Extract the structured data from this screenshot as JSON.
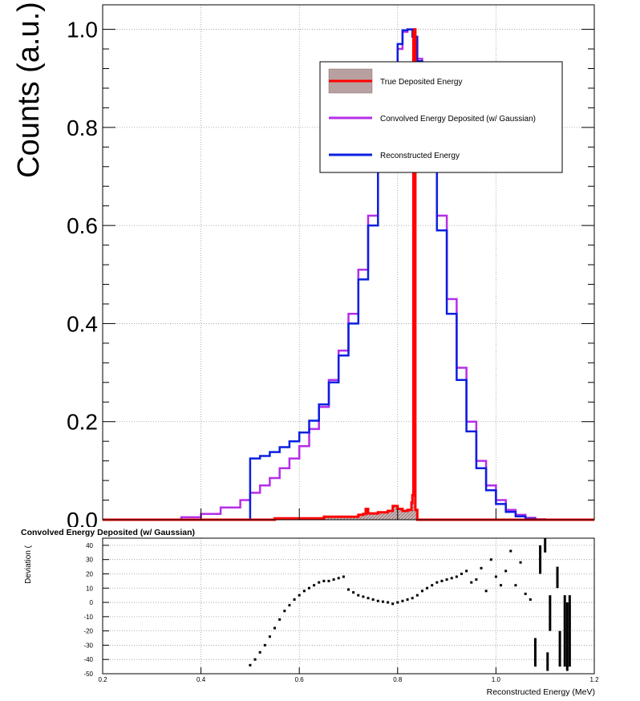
{
  "chart_data": [
    {
      "type": "line",
      "ylabel": "Counts (a.u.)",
      "xlim": [
        0.2,
        1.2
      ],
      "ylim": [
        0,
        1.05
      ],
      "grid": true,
      "legend_position": "top-right",
      "yticks": [
        "0.0",
        "0.2",
        "0.4",
        "0.6",
        "0.8",
        "1.0"
      ],
      "series": [
        {
          "name": "True Deposited Energy",
          "color": "#ff0000",
          "x": [
            0.2,
            0.4,
            0.55,
            0.65,
            0.72,
            0.73,
            0.735,
            0.74,
            0.76,
            0.78,
            0.79,
            0.8,
            0.81,
            0.82,
            0.828,
            0.83,
            0.832,
            0.834,
            0.836,
            0.84,
            1.0,
            1.2
          ],
          "y": [
            0.0,
            0.0,
            0.003,
            0.006,
            0.01,
            0.012,
            0.022,
            0.013,
            0.015,
            0.018,
            0.028,
            0.022,
            0.018,
            0.02,
            0.035,
            0.05,
            0.995,
            1.0,
            0.02,
            0.0,
            0.0,
            0.0
          ]
        },
        {
          "name": "Convolved Energy Deposited (w/ Gaussian)",
          "color": "#b52ee8",
          "x": [
            0.2,
            0.33,
            0.36,
            0.4,
            0.44,
            0.48,
            0.5,
            0.52,
            0.54,
            0.56,
            0.58,
            0.6,
            0.62,
            0.64,
            0.66,
            0.68,
            0.7,
            0.72,
            0.74,
            0.76,
            0.78,
            0.8,
            0.81,
            0.82,
            0.83,
            0.84,
            0.85,
            0.86,
            0.88,
            0.9,
            0.92,
            0.94,
            0.96,
            0.98,
            1.0,
            1.02,
            1.04,
            1.06,
            1.08,
            1.1,
            1.2
          ],
          "y": [
            0.0,
            0.0,
            0.005,
            0.012,
            0.025,
            0.04,
            0.055,
            0.07,
            0.085,
            0.105,
            0.125,
            0.15,
            0.185,
            0.23,
            0.285,
            0.345,
            0.42,
            0.51,
            0.62,
            0.74,
            0.86,
            0.96,
            0.995,
            1.0,
            0.985,
            0.94,
            0.87,
            0.79,
            0.62,
            0.45,
            0.31,
            0.2,
            0.12,
            0.07,
            0.04,
            0.02,
            0.01,
            0.004,
            0.001,
            0.0,
            0.0
          ]
        },
        {
          "name": "Reconstructed Energy",
          "color": "#0b1fe0",
          "x": [
            0.2,
            0.49,
            0.5,
            0.52,
            0.54,
            0.56,
            0.58,
            0.6,
            0.62,
            0.64,
            0.66,
            0.68,
            0.7,
            0.72,
            0.74,
            0.76,
            0.78,
            0.8,
            0.81,
            0.82,
            0.83,
            0.84,
            0.85,
            0.86,
            0.88,
            0.9,
            0.92,
            0.94,
            0.96,
            0.98,
            1.0,
            1.02,
            1.04,
            1.06,
            1.08,
            1.2
          ],
          "y": [
            0.0,
            0.0,
            0.125,
            0.13,
            0.138,
            0.148,
            0.16,
            0.178,
            0.202,
            0.235,
            0.28,
            0.335,
            0.4,
            0.49,
            0.6,
            0.73,
            0.86,
            0.97,
            0.998,
            1.0,
            0.985,
            0.935,
            0.86,
            0.77,
            0.59,
            0.42,
            0.285,
            0.18,
            0.105,
            0.06,
            0.032,
            0.016,
            0.007,
            0.002,
            0.0,
            0.0
          ]
        }
      ]
    },
    {
      "type": "scatter",
      "title": "Convolved Energy Deposited (w/ Gaussian)",
      "xlabel": "Reconstructed Energy (MeV)",
      "ylabel": "Deviation (",
      "xlim": [
        0.2,
        1.2
      ],
      "ylim": [
        -50,
        45
      ],
      "grid": true,
      "xticks": [
        "0.2",
        "0.4",
        "0.6",
        "0.8",
        "1.0",
        "1.2"
      ],
      "yticks": [
        "-50",
        "-40",
        "-30",
        "-20",
        "-10",
        "0",
        "10",
        "20",
        "30",
        "40"
      ],
      "series": [
        {
          "name": "Deviation",
          "color": "#000000",
          "x": [
            0.5,
            0.51,
            0.52,
            0.53,
            0.54,
            0.55,
            0.56,
            0.57,
            0.58,
            0.59,
            0.6,
            0.61,
            0.62,
            0.63,
            0.64,
            0.65,
            0.66,
            0.67,
            0.68,
            0.69,
            0.7,
            0.71,
            0.72,
            0.73,
            0.74,
            0.75,
            0.76,
            0.77,
            0.78,
            0.79,
            0.8,
            0.81,
            0.82,
            0.83,
            0.84,
            0.85,
            0.86,
            0.87,
            0.88,
            0.89,
            0.9,
            0.91,
            0.92,
            0.93,
            0.94,
            0.95,
            0.96,
            0.97,
            0.98,
            0.99,
            1.0,
            1.01,
            1.02,
            1.03,
            1.04,
            1.05,
            1.06,
            1.07
          ],
          "y": [
            -44,
            -40,
            -35,
            -30,
            -24,
            -18,
            -12,
            -6,
            -2,
            2,
            5,
            8,
            10,
            12,
            14,
            15,
            15,
            16,
            17,
            18,
            9,
            7,
            5,
            4,
            3,
            2,
            1,
            0.5,
            0,
            -1,
            0,
            1,
            2,
            3,
            5,
            8,
            10,
            12,
            14,
            15,
            16,
            17,
            18,
            20,
            22,
            14,
            16,
            24,
            8,
            30,
            18,
            12,
            22,
            36,
            12,
            28,
            6,
            2
          ]
        }
      ]
    }
  ]
}
